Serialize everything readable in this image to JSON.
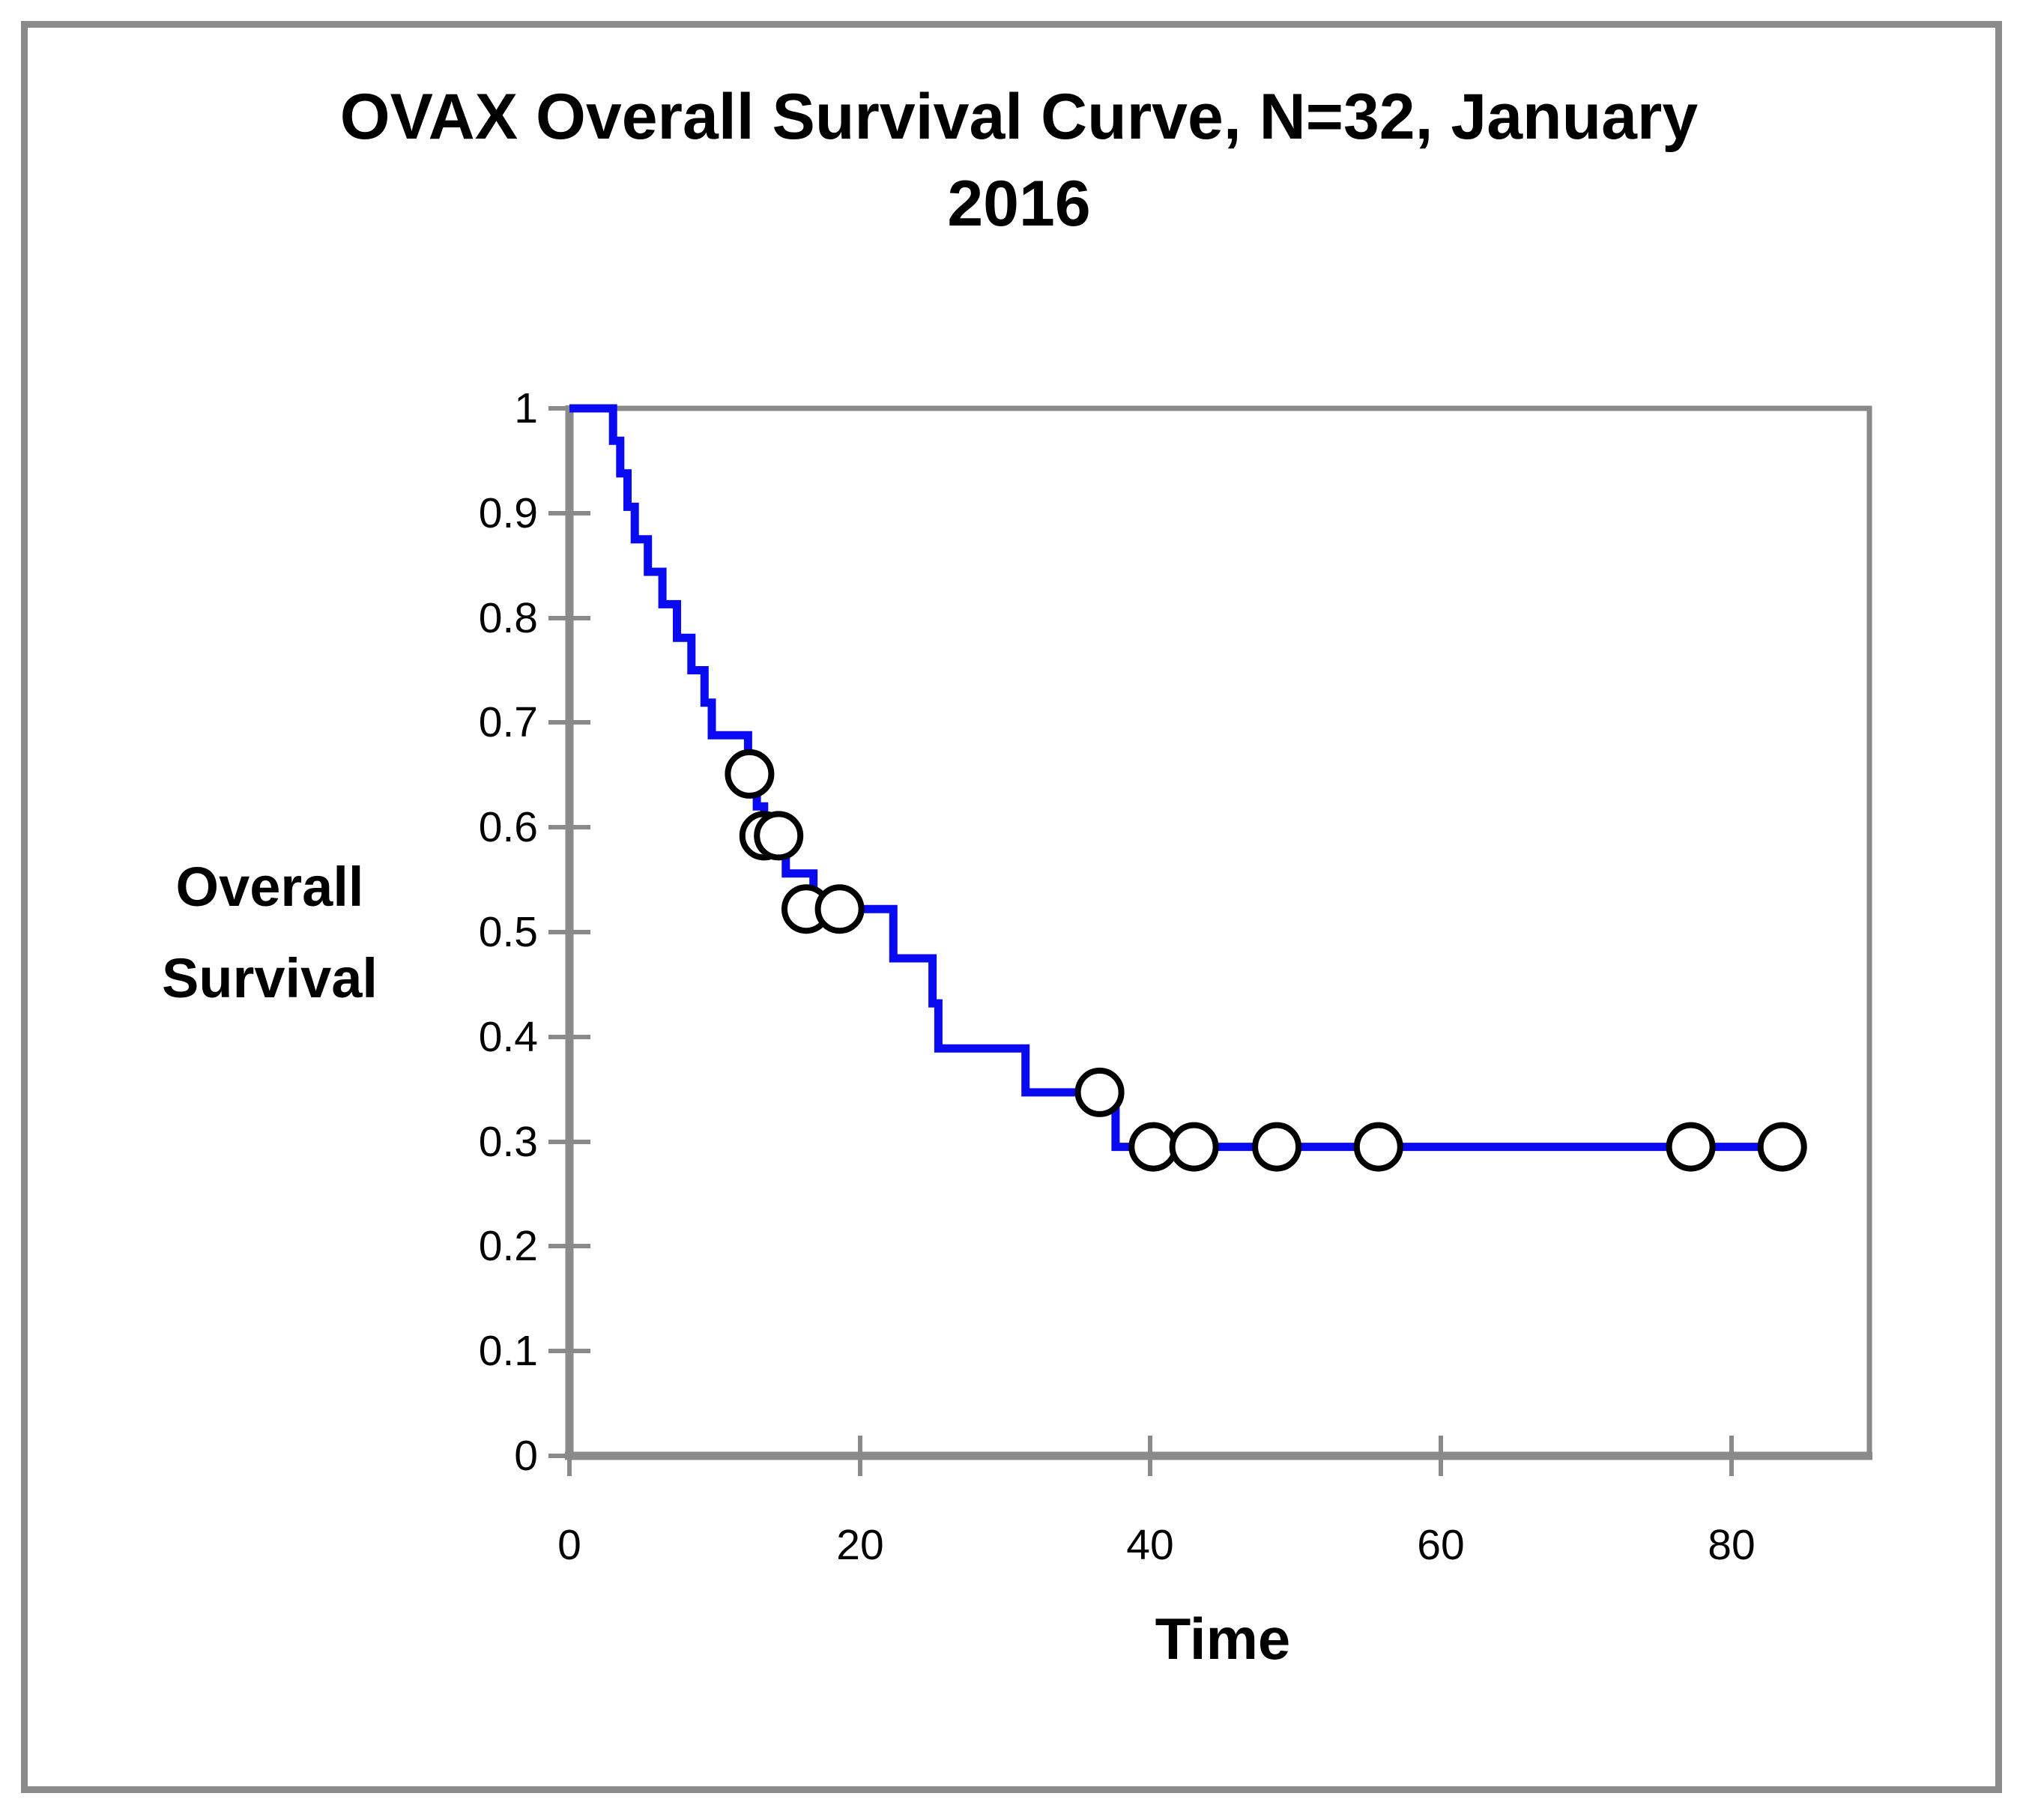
{
  "figure": {
    "title_lines": [
      "OVAX Overall Survival Curve, N=32, January",
      "2016"
    ],
    "colors": {
      "curve": "#0909F2",
      "axis": "#8A8A8A",
      "frame": "#8A8A8A",
      "text": "#000000",
      "censor_fill": "#FFFFFF",
      "censor_stroke": "#000000"
    }
  },
  "chart_data": {
    "type": "line",
    "subtype": "kaplan-meier-step",
    "title": "OVAX Overall Survival Curve, N=32, January 2016",
    "n": 32,
    "xlabel": "Time",
    "ylabel_lines": [
      "Overall",
      "Survival"
    ],
    "xlim": [
      0,
      89.5
    ],
    "ylim": [
      0,
      1
    ],
    "x_ticks": [
      "0",
      "20",
      "40",
      "60",
      "80"
    ],
    "y_ticks": [
      "1",
      "0.9",
      "0.8",
      "0.7",
      "0.6",
      "0.5",
      "0.4",
      "0.3",
      "0.2",
      "0.1",
      "0"
    ],
    "grid": false,
    "legend": "none",
    "series": [
      {
        "name": "Overall Survival",
        "style": "step-after",
        "points": [
          [
            0,
            1.0
          ],
          [
            3.0,
            0.969
          ],
          [
            3.5,
            0.938
          ],
          [
            4.0,
            0.906
          ],
          [
            4.5,
            0.875
          ],
          [
            5.4,
            0.844
          ],
          [
            6.4,
            0.813
          ],
          [
            7.4,
            0.781
          ],
          [
            8.4,
            0.75
          ],
          [
            9.3,
            0.719
          ],
          [
            9.8,
            0.688
          ],
          [
            12.3,
            0.651
          ],
          [
            12.9,
            0.62
          ],
          [
            13.4,
            0.592
          ],
          [
            14.9,
            0.556
          ],
          [
            16.8,
            0.522
          ],
          [
            22.3,
            0.475
          ],
          [
            25.0,
            0.432
          ],
          [
            25.4,
            0.389
          ],
          [
            31.4,
            0.347
          ],
          [
            37.6,
            0.295
          ]
        ],
        "end_time": 83.5
      }
    ],
    "censor_marks": [
      [
        12.4,
        0.651
      ],
      [
        13.4,
        0.592
      ],
      [
        14.4,
        0.592
      ],
      [
        16.3,
        0.522
      ],
      [
        18.6,
        0.522
      ],
      [
        36.5,
        0.347
      ],
      [
        40.2,
        0.295
      ],
      [
        43.0,
        0.295
      ],
      [
        48.7,
        0.295
      ],
      [
        55.7,
        0.295
      ],
      [
        77.2,
        0.295
      ],
      [
        83.5,
        0.295
      ]
    ]
  }
}
